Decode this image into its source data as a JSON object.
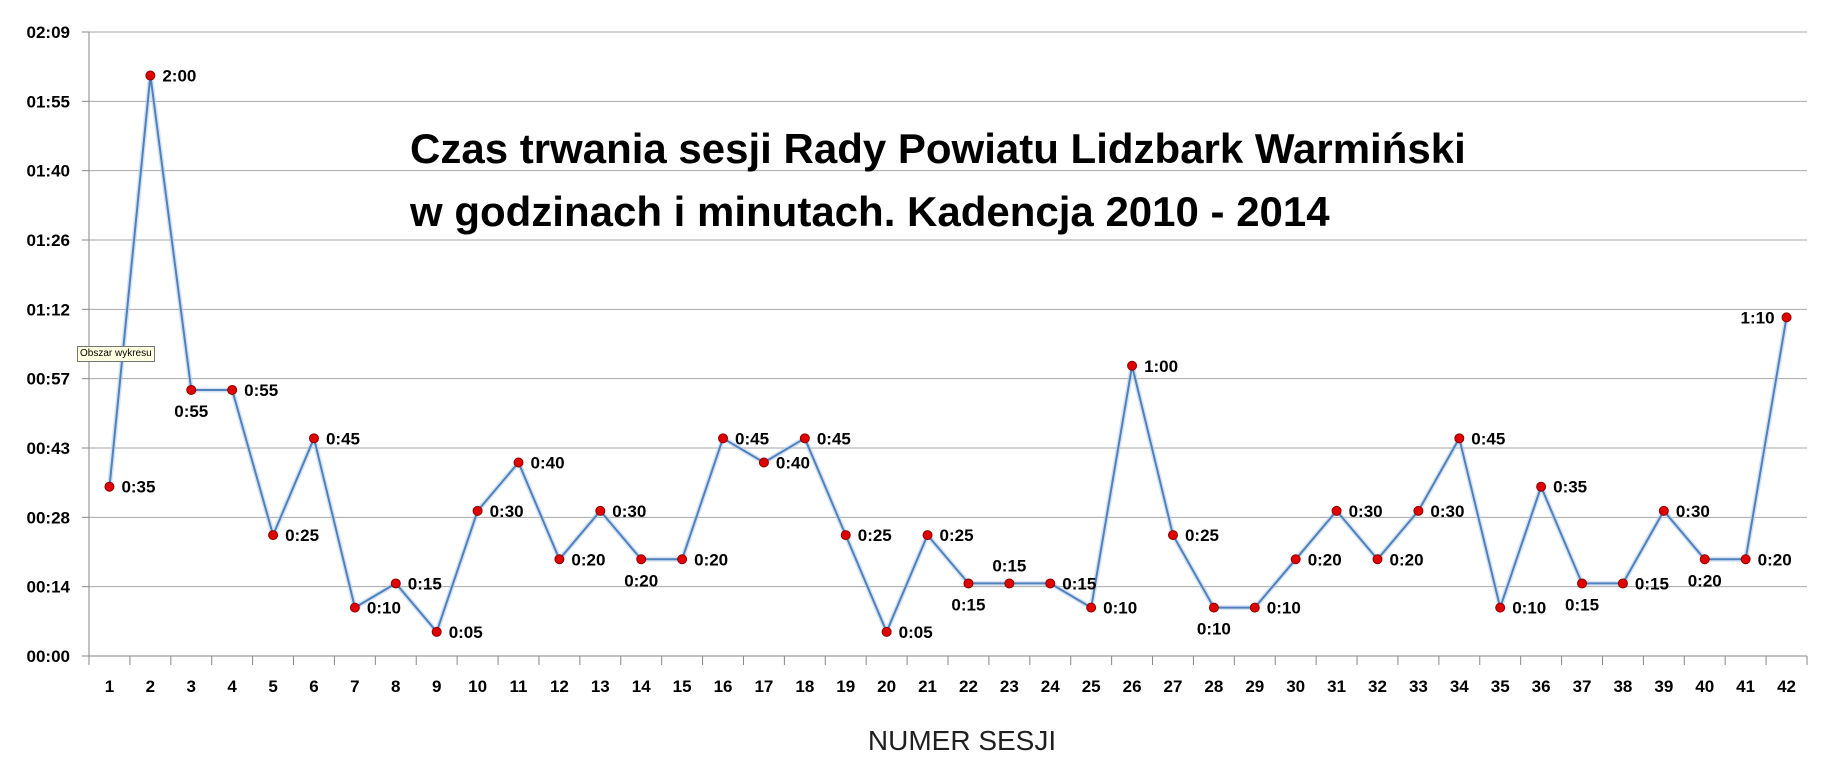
{
  "tooltip": "Obszar wykresu",
  "chart_data": {
    "type": "line",
    "title_lines": [
      "Czas trwania sesji Rady Powiatu Lidzbark Warmiński",
      "w godzinach i minutach. Kadencja 2010 - 2014"
    ],
    "xlabel": "NUMER SESJI",
    "ylabel": "",
    "y_unit": "minutes",
    "ylim_minutes": [
      0,
      129
    ],
    "y_tick_labels": [
      "00:00",
      "00:14",
      "00:28",
      "00:43",
      "00:57",
      "01:12",
      "01:26",
      "01:40",
      "01:55",
      "02:09"
    ],
    "grid": true,
    "colors": {
      "line": "#4f81bd",
      "marker": "#e00000",
      "grid": "#a6a6a6"
    },
    "x": [
      1,
      2,
      3,
      4,
      5,
      6,
      7,
      8,
      9,
      10,
      11,
      12,
      13,
      14,
      15,
      16,
      17,
      18,
      19,
      20,
      21,
      22,
      23,
      24,
      25,
      26,
      27,
      28,
      29,
      30,
      31,
      32,
      33,
      34,
      35,
      36,
      37,
      38,
      39,
      40,
      41,
      42
    ],
    "values_minutes": [
      35,
      120,
      55,
      55,
      25,
      45,
      10,
      15,
      5,
      30,
      40,
      20,
      30,
      20,
      20,
      45,
      40,
      45,
      25,
      5,
      25,
      15,
      15,
      15,
      10,
      60,
      25,
      10,
      10,
      20,
      30,
      20,
      30,
      45,
      10,
      35,
      15,
      15,
      30,
      20,
      20,
      70
    ],
    "data_labels": [
      "0:35",
      "2:00",
      "0:55",
      "0:55",
      "0:25",
      "0:45",
      "0:10",
      "0:15",
      "0:05",
      "0:30",
      "0:40",
      "0:20",
      "0:30",
      "0:20",
      "0:20",
      "0:45",
      "0:40",
      "0:45",
      "0:25",
      "0:05",
      "0:25",
      "0:15",
      "0:15",
      "0:15",
      "0:10",
      "1:00",
      "0:25",
      "0:10",
      "0:10",
      "0:20",
      "0:30",
      "0:20",
      "0:30",
      "0:45",
      "0:10",
      "0:35",
      "0:15",
      "0:15",
      "0:30",
      "0:20",
      "0:20",
      "1:10"
    ],
    "label_positions": [
      "right",
      "right",
      "below",
      "right",
      "right",
      "right",
      "right",
      "right",
      "right",
      "right",
      "right",
      "right",
      "right",
      "below",
      "right",
      "right",
      "right",
      "right",
      "right",
      "right",
      "right",
      "below",
      "above",
      "right",
      "right",
      "right",
      "right",
      "below",
      "right",
      "right",
      "right",
      "right",
      "right",
      "right",
      "right",
      "right",
      "below",
      "right",
      "right",
      "below",
      "right",
      "left"
    ]
  }
}
